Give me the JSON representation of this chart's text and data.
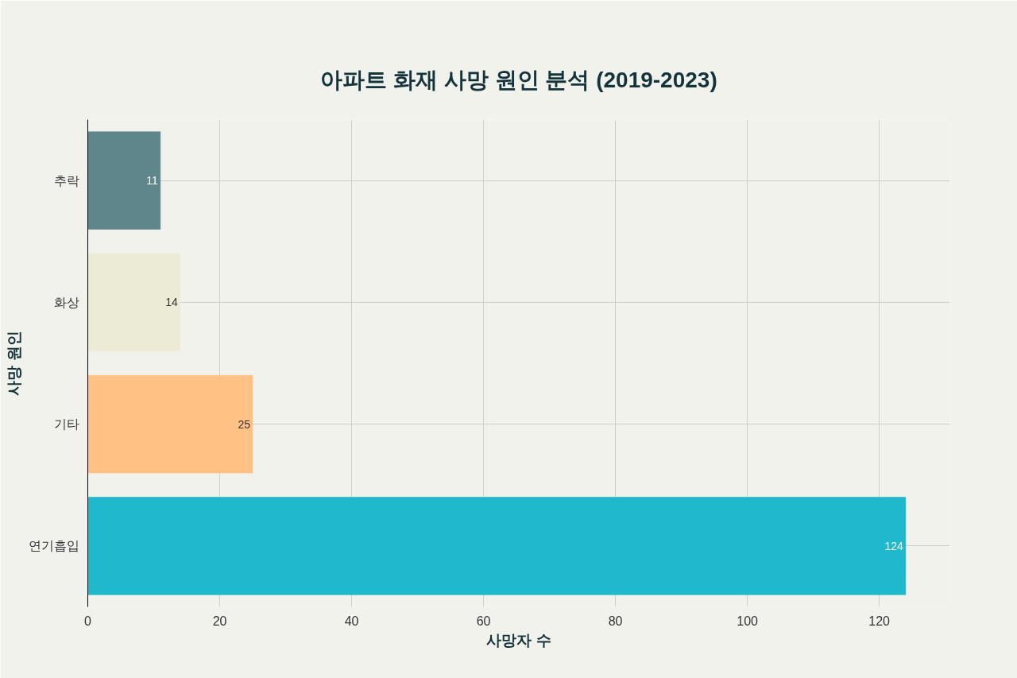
{
  "chart_data": {
    "type": "bar",
    "orientation": "horizontal",
    "title": "아파트 화재 사망 원인 분석 (2019-2023)",
    "xlabel": "사망자 수",
    "ylabel": "사망 원인",
    "categories": [
      "추락",
      "화상",
      "기타",
      "연기흡입"
    ],
    "values": [
      11,
      14,
      25,
      124
    ],
    "colors": [
      "#5e868b",
      "#ebebd6",
      "#ffc184",
      "#1fb8cd"
    ],
    "xlim": [
      0,
      130.7
    ],
    "xticks": [
      0,
      20,
      40,
      60,
      80,
      100,
      120
    ],
    "grid": true,
    "data_labels": true
  }
}
